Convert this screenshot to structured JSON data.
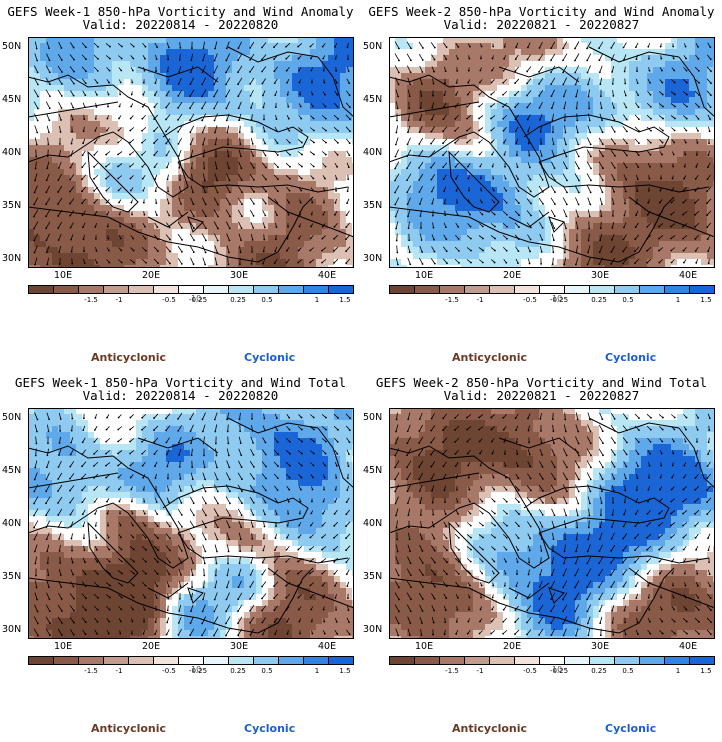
{
  "panels": [
    {
      "title": "GEFS Week-1 850-hPa Vorticity and Wind Anomaly",
      "valid": "Valid: 20220814 - 20220820"
    },
    {
      "title": "GEFS Week-2 850-hPa Vorticity and Wind Anomaly",
      "valid": "Valid: 20220821 - 20220827"
    },
    {
      "title": "GEFS Week-1 850-hPa Vorticity and Wind Total",
      "valid": "Valid: 20220814 - 20220820"
    },
    {
      "title": "GEFS Week-2 850-hPa Vorticity and Wind Total",
      "valid": "Valid: 20220821 - 20220827"
    }
  ],
  "axes": {
    "lat_labels": [
      "50N",
      "45N",
      "40N",
      "35N",
      "30N"
    ],
    "lon_labels": [
      "10E",
      "20E",
      "30E",
      "40E"
    ]
  },
  "colorbar": {
    "colors": [
      "#6e4433",
      "#8a5a48",
      "#a87868",
      "#c29c8e",
      "#dcc0b4",
      "#f2e4dc",
      "#ffffff",
      "#e6f6fb",
      "#b9e6f5",
      "#8fcaf0",
      "#5fa8ea",
      "#3384e2",
      "#1a66d6"
    ],
    "ticks": [
      "-1.5",
      "-1",
      "-0.5",
      "-0.25",
      "0.25",
      "0.5",
      "1",
      "1.5"
    ],
    "units": "10"
  },
  "legend": {
    "anticyclonic": "Anticyclonic",
    "cyclonic": "Cyclonic"
  }
}
